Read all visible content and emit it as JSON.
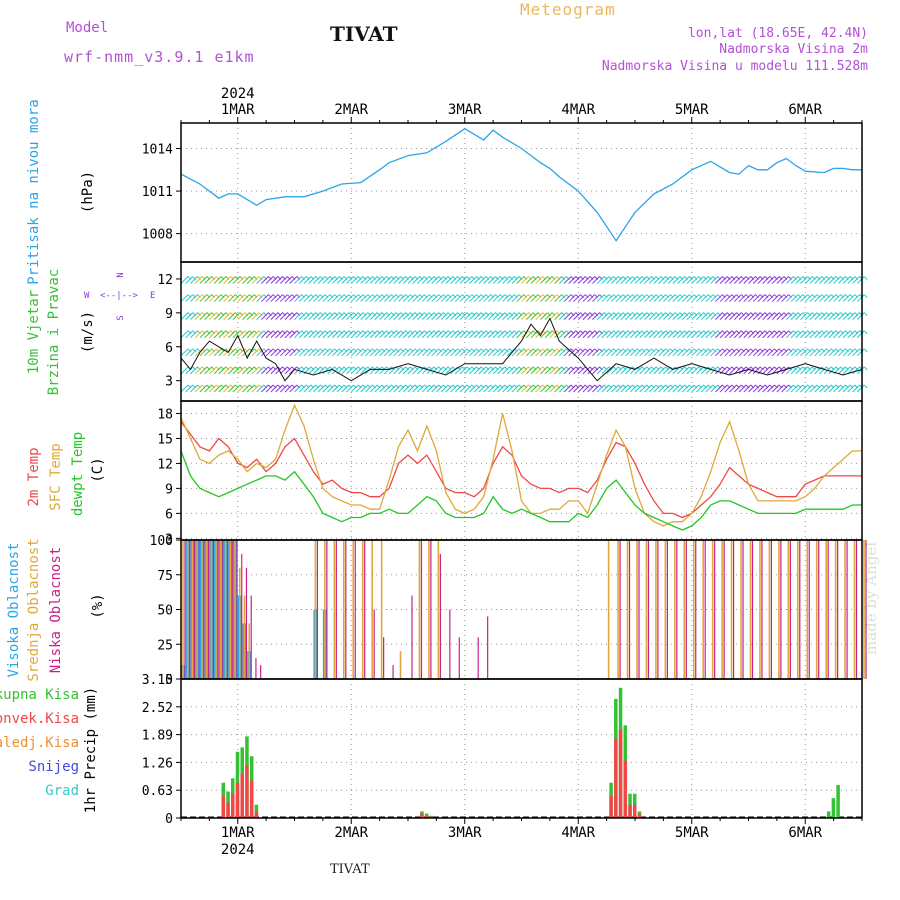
{
  "header": {
    "model_label": "Model",
    "model_name": "wrf-nmm_v3.9.1 e1km",
    "station": "TIVAT",
    "product": "Meteogram",
    "coords": "lon,lat (18.65E, 42.4N)",
    "elevation": "Nadmorska Visina 2m",
    "model_elevation": "Nadmorska Visina u modelu 111.528m"
  },
  "footer": {
    "station": "TIVAT",
    "watermark": "made by Angel"
  },
  "time_axis": {
    "year": "2024",
    "day_labels": [
      "1MAR",
      "2MAR",
      "3MAR",
      "4MAR",
      "5MAR",
      "6MAR"
    ],
    "start_hours": -12,
    "end_hours": 132
  },
  "colors": {
    "pressure": "#2aa5e8",
    "t2m": "#f04848",
    "sfc": "#e0a838",
    "dewpt": "#22c822",
    "high_cloud": "#2aa5e8",
    "mid_cloud": "#e0a838",
    "low_cloud": "#c8208a",
    "total_precip": "#34c234",
    "conv_precip": "#f04848",
    "frz_precip": "#f09030",
    "snow": "#4848e0",
    "hail": "#38c8c8",
    "wind_cyan": "#28c8c8",
    "wind_purple": "#8a38d8",
    "wind_green": "#3ac83a",
    "wind_orange": "#f0b030"
  },
  "chart_data": [
    {
      "type": "line",
      "title": "Pritisak na nivou mora",
      "ylabel": "(hPa)",
      "yticks": [
        1008,
        1011,
        1014
      ],
      "ylim": [
        1006,
        1015.8
      ],
      "series": [
        {
          "name": "Pritisak na nivou mora",
          "x": [
            -12,
            -8,
            -4,
            -2,
            0,
            4,
            6,
            10,
            14,
            18,
            22,
            26,
            30,
            32,
            36,
            40,
            44,
            48,
            52,
            54,
            56,
            60,
            62,
            64,
            66,
            68,
            72,
            76,
            80,
            84,
            88,
            92,
            96,
            100,
            104,
            106,
            108,
            110,
            112,
            114,
            116,
            118,
            120,
            124,
            126,
            128,
            130,
            132
          ],
          "y": [
            1012.2,
            1011.5,
            1010.5,
            1010.8,
            1010.8,
            1010.0,
            1010.4,
            1010.6,
            1010.6,
            1011.0,
            1011.5,
            1011.6,
            1012.5,
            1013.0,
            1013.5,
            1013.7,
            1014.5,
            1015.4,
            1014.6,
            1015.3,
            1014.8,
            1014.0,
            1013.5,
            1013.0,
            1012.6,
            1012.0,
            1011.0,
            1009.5,
            1007.5,
            1009.5,
            1010.8,
            1011.5,
            1012.5,
            1013.1,
            1012.3,
            1012.2,
            1012.8,
            1012.5,
            1012.5,
            1013.0,
            1013.3,
            1012.8,
            1012.4,
            1012.3,
            1012.6,
            1012.6,
            1012.5,
            1012.5
          ]
        }
      ]
    },
    {
      "type": "line",
      "title": "10m Vjetar Brzina i Pravac",
      "ylabel": "(m/s)",
      "yticks": [
        3,
        6,
        9,
        12
      ],
      "ylim": [
        1.2,
        13.5
      ],
      "compass": [
        "W",
        "<--|-->",
        "E",
        "N",
        "S"
      ],
      "series": [
        {
          "name": "10m Vjetar Brzina",
          "x": [
            -12,
            -10,
            -8,
            -6,
            -4,
            -2,
            0,
            2,
            4,
            6,
            8,
            10,
            12,
            16,
            20,
            24,
            28,
            32,
            36,
            40,
            44,
            48,
            52,
            56,
            58,
            60,
            62,
            64,
            66,
            68,
            72,
            76,
            80,
            84,
            88,
            92,
            96,
            100,
            104,
            108,
            112,
            116,
            120,
            124,
            128,
            132
          ],
          "y": [
            5.0,
            4.0,
            5.5,
            6.5,
            6.0,
            5.5,
            7.0,
            5.0,
            6.5,
            5.0,
            4.5,
            3.0,
            4.0,
            3.5,
            4.0,
            3.0,
            4.0,
            4.0,
            4.5,
            4.0,
            3.5,
            4.5,
            4.5,
            4.5,
            5.5,
            6.5,
            8.0,
            7.0,
            8.5,
            6.5,
            5.0,
            3.0,
            4.5,
            4.0,
            5.0,
            4.0,
            4.5,
            4.0,
            3.5,
            4.0,
            3.5,
            4.0,
            4.5,
            4.0,
            3.5,
            4.0
          ]
        }
      ]
    },
    {
      "type": "line",
      "title": "",
      "ylabel": "(C)",
      "yticks": [
        3,
        6,
        9,
        12,
        15,
        18
      ],
      "ylim": [
        2.8,
        19.5
      ],
      "series_labels": [
        "2m Temp",
        "SFC Temp",
        "dewpt Temp"
      ],
      "x": [
        -12,
        -10,
        -8,
        -6,
        -4,
        -2,
        0,
        2,
        4,
        6,
        8,
        10,
        12,
        14,
        16,
        18,
        20,
        22,
        24,
        26,
        28,
        30,
        32,
        34,
        36,
        38,
        40,
        42,
        44,
        46,
        48,
        50,
        52,
        54,
        56,
        58,
        60,
        62,
        64,
        66,
        68,
        70,
        72,
        74,
        76,
        78,
        80,
        82,
        84,
        86,
        88,
        90,
        92,
        94,
        96,
        98,
        100,
        102,
        104,
        106,
        108,
        110,
        112,
        114,
        116,
        118,
        120,
        122,
        124,
        126,
        128,
        130,
        132
      ],
      "series": [
        {
          "name": "2m Temp",
          "y": [
            17.0,
            15.5,
            14.0,
            13.5,
            15.0,
            14.0,
            12.0,
            11.5,
            12.5,
            11.0,
            12.0,
            14.0,
            15.0,
            13.0,
            11.0,
            9.5,
            10.0,
            9.0,
            8.5,
            8.5,
            8.0,
            8.0,
            9.0,
            12.0,
            13.0,
            12.0,
            13.0,
            11.0,
            9.0,
            8.5,
            8.5,
            8.0,
            9.0,
            12.0,
            14.0,
            13.0,
            10.5,
            9.5,
            9.0,
            9.0,
            8.5,
            9.0,
            9.0,
            8.5,
            10.0,
            12.5,
            14.5,
            14.0,
            12.0,
            9.5,
            7.5,
            6.0,
            6.0,
            5.5,
            6.0,
            7.0,
            8.0,
            9.5,
            11.5,
            10.5,
            9.5,
            9.0,
            8.5,
            8.0,
            8.0,
            8.0,
            9.5,
            10.0,
            10.5,
            10.5,
            10.5,
            10.5,
            10.5
          ]
        },
        {
          "name": "SFC Temp",
          "y": [
            17.5,
            15.0,
            12.5,
            12.0,
            13.0,
            13.5,
            12.5,
            11.0,
            12.0,
            11.5,
            12.5,
            16.0,
            19.0,
            16.5,
            12.5,
            9.0,
            8.0,
            7.5,
            7.0,
            7.0,
            6.5,
            6.5,
            10.0,
            14.0,
            16.0,
            13.5,
            16.5,
            13.5,
            8.5,
            6.5,
            6.0,
            6.5,
            8.0,
            12.5,
            18.0,
            13.5,
            7.5,
            6.0,
            6.0,
            6.5,
            6.5,
            7.5,
            7.5,
            6.0,
            9.5,
            13.0,
            16.0,
            14.0,
            9.0,
            6.0,
            5.0,
            4.5,
            5.0,
            5.0,
            6.0,
            8.0,
            11.0,
            14.5,
            17.0,
            13.5,
            9.5,
            7.5,
            7.5,
            7.5,
            7.5,
            7.5,
            8.0,
            9.0,
            10.5,
            11.5,
            12.5,
            13.5,
            13.5
          ]
        },
        {
          "name": "dewpt Temp",
          "y": [
            13.5,
            10.5,
            9.0,
            8.5,
            8.0,
            8.5,
            9.0,
            9.5,
            10.0,
            10.5,
            10.5,
            10.0,
            11.0,
            9.5,
            8.0,
            6.0,
            5.5,
            5.0,
            5.5,
            5.5,
            6.0,
            6.0,
            6.5,
            6.0,
            6.0,
            7.0,
            8.0,
            7.5,
            6.0,
            5.5,
            5.5,
            5.5,
            6.0,
            8.0,
            6.5,
            6.0,
            6.5,
            6.0,
            5.5,
            5.0,
            5.0,
            5.0,
            6.0,
            5.5,
            7.0,
            9.0,
            10.0,
            8.5,
            7.0,
            6.0,
            5.5,
            5.0,
            4.5,
            4.0,
            4.5,
            5.5,
            7.0,
            7.5,
            7.5,
            7.0,
            6.5,
            6.0,
            6.0,
            6.0,
            6.0,
            6.0,
            6.5,
            6.5,
            6.5,
            6.5,
            6.5,
            7.0,
            7.0
          ]
        }
      ]
    },
    {
      "type": "bar",
      "title": "",
      "ylabel": "(%)",
      "yticks": [
        0,
        25,
        50,
        75,
        100
      ],
      "ylim": [
        0,
        100
      ],
      "series_labels": [
        "Visoka Oblacnost",
        "Srednja Oblacnost",
        "Niska Oblacnost"
      ],
      "x": [
        -12,
        -11,
        -10,
        -9,
        -8,
        -7,
        -6,
        -5,
        -4,
        -3,
        -2,
        -1,
        0,
        1,
        2,
        3,
        4,
        6,
        8,
        10,
        12,
        14,
        16,
        18,
        20,
        22,
        24,
        26,
        28,
        30,
        32,
        34,
        36,
        38,
        40,
        42,
        44,
        46,
        48,
        50,
        52,
        54,
        56,
        58,
        60,
        62,
        64,
        66,
        68,
        70,
        72,
        74,
        76,
        78,
        80,
        82,
        84,
        86,
        88,
        90,
        92,
        94,
        96,
        98,
        100,
        102,
        104,
        106,
        108,
        110,
        112,
        114,
        116,
        118,
        120,
        122,
        124,
        126,
        128,
        130,
        132
      ],
      "series": [
        {
          "name": "Visoka Oblacnost",
          "values": [
            10,
            100,
            100,
            100,
            100,
            100,
            100,
            100,
            100,
            100,
            100,
            100,
            60,
            40,
            20,
            0,
            0,
            0,
            0,
            0,
            0,
            0,
            50,
            50,
            0,
            0,
            0,
            0,
            0,
            0,
            0,
            0,
            0,
            0,
            0,
            0,
            0,
            0,
            0,
            0,
            0,
            0,
            0,
            0,
            0,
            0,
            0,
            0,
            0,
            0,
            0,
            0,
            0,
            0,
            0,
            0,
            0,
            0,
            0,
            0,
            0,
            0,
            0,
            0,
            0,
            0,
            0,
            0,
            0,
            0,
            0,
            0,
            0,
            0,
            0,
            0,
            0,
            0,
            0,
            0,
            0
          ]
        },
        {
          "name": "Srednja Oblacnost",
          "values": [
            100,
            100,
            100,
            100,
            100,
            100,
            100,
            100,
            100,
            100,
            100,
            100,
            80,
            60,
            40,
            0,
            0,
            0,
            0,
            0,
            0,
            0,
            100,
            100,
            100,
            100,
            100,
            100,
            100,
            100,
            0,
            20,
            0,
            100,
            100,
            100,
            0,
            0,
            0,
            0,
            0,
            0,
            0,
            0,
            0,
            0,
            0,
            0,
            0,
            0,
            0,
            0,
            0,
            100,
            100,
            100,
            100,
            100,
            100,
            100,
            100,
            100,
            100,
            100,
            100,
            100,
            100,
            100,
            100,
            100,
            100,
            100,
            100,
            100,
            100,
            100,
            100,
            100,
            100,
            100,
            100
          ]
        },
        {
          "name": "Niska Oblacnost",
          "values": [
            100,
            100,
            100,
            100,
            100,
            100,
            100,
            100,
            100,
            100,
            100,
            100,
            90,
            80,
            60,
            15,
            10,
            0,
            0,
            0,
            0,
            0,
            100,
            100,
            100,
            100,
            100,
            100,
            50,
            30,
            10,
            0,
            60,
            100,
            100,
            90,
            50,
            30,
            0,
            30,
            45,
            0,
            0,
            0,
            0,
            0,
            0,
            0,
            0,
            0,
            0,
            0,
            0,
            0,
            100,
            100,
            100,
            100,
            100,
            100,
            100,
            100,
            100,
            100,
            100,
            100,
            100,
            100,
            100,
            100,
            100,
            100,
            100,
            100,
            100,
            100,
            100,
            100,
            100,
            100,
            100
          ]
        }
      ]
    },
    {
      "type": "bar",
      "title": "",
      "ylabel": "1hr Precip (mm)",
      "yticks": [
        "0",
        "0.63",
        "1.26",
        "1.89",
        "2.52",
        "3.15"
      ],
      "ylim": [
        0,
        3.15
      ],
      "series_labels": [
        "Ukupna Kisa",
        "Konvek.Kisa",
        "Zaledj.Kisa",
        "Snijeg",
        "Grad"
      ],
      "x": [
        -3,
        -2,
        -1,
        0,
        1,
        2,
        3,
        4,
        5,
        6,
        39,
        40,
        41,
        79,
        80,
        81,
        82,
        83,
        84,
        85,
        86,
        125,
        126,
        127
      ],
      "series": [
        {
          "name": "Ukupna Kisa",
          "values": [
            0.8,
            0.6,
            0.9,
            1.5,
            1.6,
            1.85,
            1.4,
            0.3,
            0,
            0,
            0.15,
            0.1,
            0.05,
            0.8,
            2.7,
            2.95,
            2.1,
            0.55,
            0.55,
            0.15,
            0,
            0.15,
            0.45,
            0.75
          ]
        },
        {
          "name": "Konvek.Kisa",
          "values": [
            0.5,
            0.35,
            0.55,
            0.8,
            1.0,
            1.2,
            0.85,
            0.15,
            0,
            0,
            0.1,
            0.05,
            0.03,
            0.5,
            1.8,
            2.0,
            1.3,
            0.3,
            0.3,
            0.08,
            0,
            0,
            0,
            0
          ]
        }
      ]
    }
  ]
}
